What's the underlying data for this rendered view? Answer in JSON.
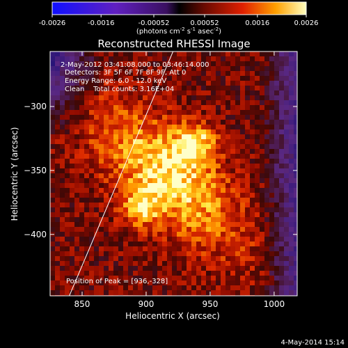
{
  "chart_data": {
    "type": "heatmap",
    "title": "Reconstructed RHESSI Image",
    "xlabel": "Heliocentric X (arcsec)",
    "ylabel": "Heliocentric Y (arcsec)",
    "xlim": [
      825,
      1018
    ],
    "ylim": [
      -448,
      -257
    ],
    "xticks": [
      850,
      900,
      950,
      1000
    ],
    "yticks": [
      -300,
      -350,
      -400
    ],
    "colorbar": {
      "range": [
        -0.0026,
        0.0026
      ],
      "ticks": [
        "-0.0026",
        "-0.0016",
        "-0.00052",
        "0.00052",
        "0.0016",
        "0.0026"
      ],
      "unit_main": "(photons cm",
      "unit_sup1": "-2",
      "unit_mid1": " s",
      "unit_sup2": "-1",
      "unit_mid2": " asec",
      "unit_sup3": "-2",
      "unit_end": ")"
    },
    "info_lines": [
      "2-May-2012 03:41:08.000 to 03:46:14.000",
      "Detectors: 3F 5F 6F 7F 8F 9F, Att 0",
      "Energy Range: 6.0 - 12.0 keV",
      "Clean    Total counts: 3.16E+04"
    ],
    "peak_label": "Position of Peak = [936,-328]",
    "peak": [
      936,
      -328
    ],
    "secondary_source": [
      893,
      -378
    ],
    "limb_line": [
      [
        840,
        -448
      ],
      [
        921,
        -257
      ]
    ],
    "colors": {
      "background": "#000000",
      "text": "#ffffff"
    }
  },
  "footer_date": "4-May-2014 15:14"
}
